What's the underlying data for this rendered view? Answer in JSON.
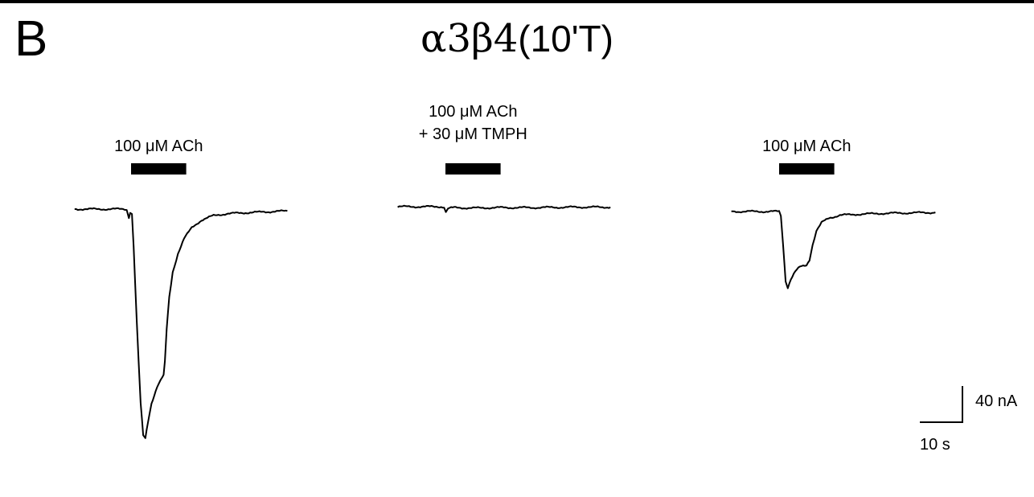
{
  "panel_letter": "B",
  "title": {
    "main": "α3β4",
    "tail": "(10'T)"
  },
  "scale_bar": {
    "y_label": "40 nA",
    "x_label": "10 s",
    "y_value_nA": 40,
    "x_value_s": 10
  },
  "chart_data": {
    "type": "line",
    "title": "α3β4(10'T)",
    "xlabel": "",
    "ylabel": "",
    "units": {
      "x": "s",
      "y": "nA"
    },
    "series": [
      {
        "label_lines": [
          "100 μM ACh"
        ],
        "application": {
          "start_s": 0,
          "end_s": 9
        },
        "points": [
          [
            -13,
            0
          ],
          [
            -1.5,
            0
          ],
          [
            -1,
            -0.5
          ],
          [
            -0.5,
            -9
          ],
          [
            -0.2,
            -3
          ],
          [
            0.2,
            -5
          ],
          [
            0.6,
            -40
          ],
          [
            1.3,
            -120
          ],
          [
            2.2,
            -210
          ],
          [
            2.8,
            -245
          ],
          [
            3.3,
            -248
          ],
          [
            3.9,
            -230
          ],
          [
            4.7,
            -210
          ],
          [
            6,
            -192
          ],
          [
            7.2,
            -182
          ],
          [
            7.5,
            -180
          ],
          [
            7.8,
            -165
          ],
          [
            8.2,
            -130
          ],
          [
            8.8,
            -95
          ],
          [
            9.6,
            -68
          ],
          [
            10.8,
            -48
          ],
          [
            12.2,
            -32
          ],
          [
            14,
            -20
          ],
          [
            16.2,
            -12
          ],
          [
            19,
            -7
          ],
          [
            22,
            -5
          ],
          [
            26,
            -4
          ],
          [
            31,
            -3
          ],
          [
            36,
            -2
          ]
        ]
      },
      {
        "label_lines": [
          "100 μM ACh",
          "+ 30 μM TMPH"
        ],
        "application": {
          "start_s": 0,
          "end_s": 9
        },
        "points": [
          [
            -11,
            0
          ],
          [
            -1,
            0
          ],
          [
            -0.3,
            -0.5
          ],
          [
            0.1,
            -6
          ],
          [
            0.6,
            -2
          ],
          [
            2,
            -1
          ],
          [
            6,
            -1.5
          ],
          [
            12,
            -1
          ],
          [
            20,
            -1
          ],
          [
            30,
            -0.5
          ],
          [
            38,
            -0.5
          ]
        ]
      },
      {
        "label_lines": [
          "100 μM ACh"
        ],
        "application": {
          "start_s": 0,
          "end_s": 9
        },
        "points": [
          [
            -11,
            0
          ],
          [
            0,
            0
          ],
          [
            0.4,
            -5
          ],
          [
            0.9,
            -35
          ],
          [
            1.5,
            -75
          ],
          [
            2,
            -82
          ],
          [
            2.7,
            -73
          ],
          [
            3.7,
            -65
          ],
          [
            4.8,
            -60
          ],
          [
            6.3,
            -58
          ],
          [
            7,
            -52
          ],
          [
            7.7,
            -36
          ],
          [
            8.6,
            -21
          ],
          [
            9.8,
            -12
          ],
          [
            11.5,
            -7
          ],
          [
            14,
            -4
          ],
          [
            18,
            -3
          ],
          [
            24,
            -2
          ],
          [
            30,
            -1.5
          ],
          [
            36,
            -1
          ]
        ]
      }
    ]
  }
}
